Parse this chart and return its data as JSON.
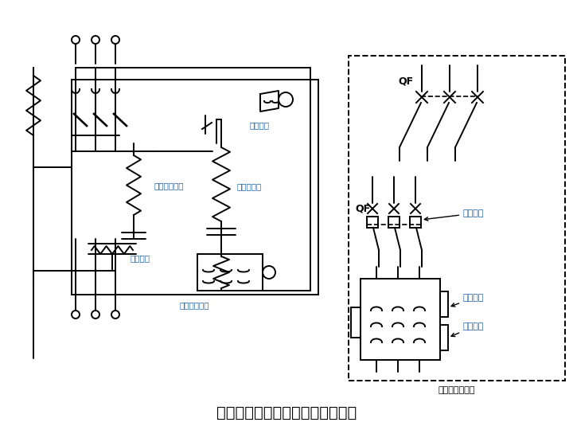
{
  "title": "断路器工作原理示意图及图形符号",
  "title_fontsize": 14,
  "bg_color": "#ffffff",
  "line_color": "#000000",
  "blue_color": "#1a5fa8",
  "label_过电流脱扣器": "过电流脱扣器",
  "label_热脱扣器": "热脱扣器",
  "label_分励脱扣器": "分励脱扣器",
  "label_远控恢复": "远控恢复",
  "label_失电压脱扣器": "失电压脱扣器",
  "label_QF": "QF",
  "label_失压保护": "失压保护",
  "label_过流保护1": "过流保护",
  "label_过流保护2": "过流保护",
  "label_断路器图形符号": "断路器图形符号"
}
